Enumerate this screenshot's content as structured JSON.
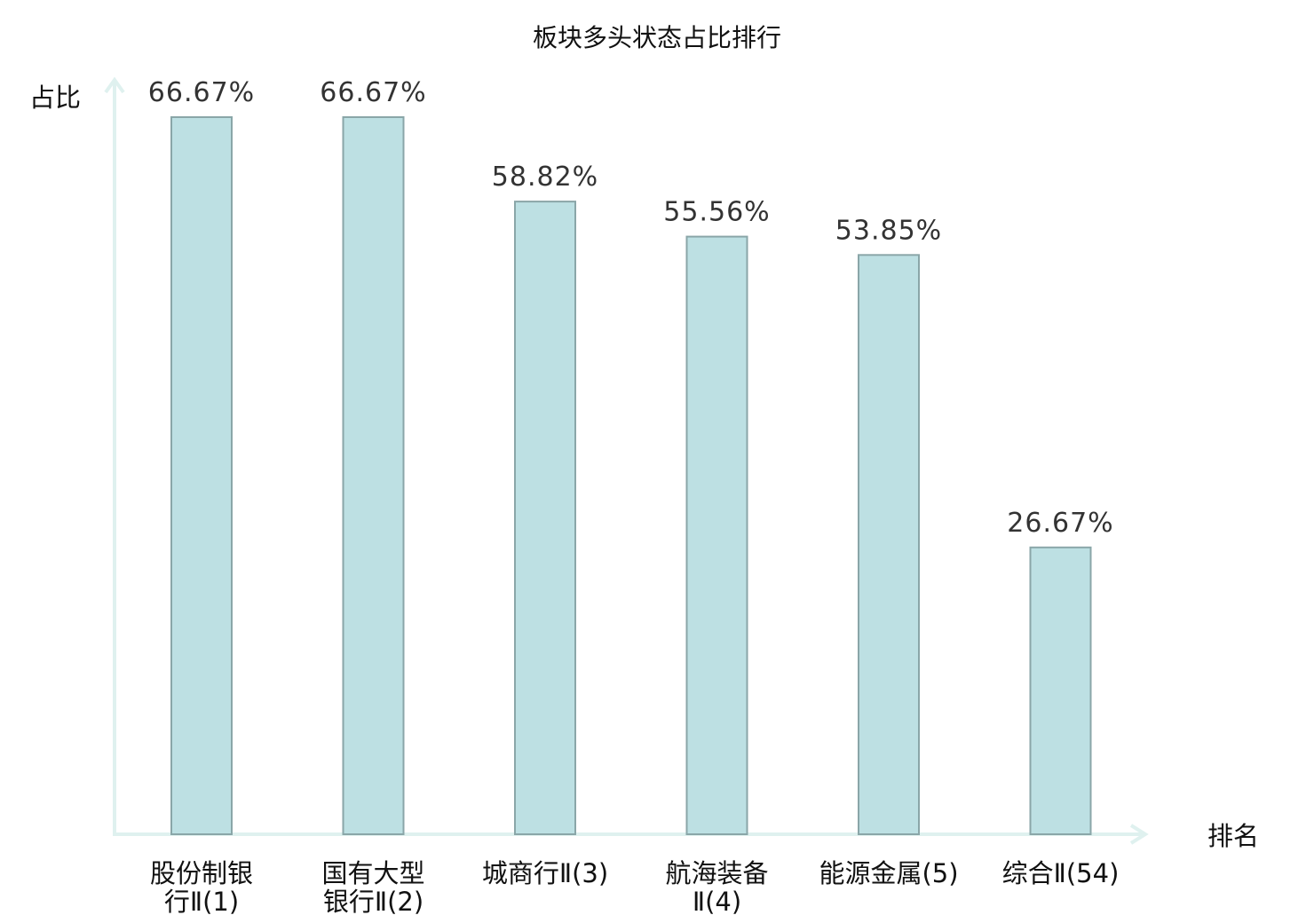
{
  "chart_data": {
    "type": "bar",
    "title": "板块多头状态占比排行",
    "ylabel": "占比",
    "xlabel": "排名",
    "ylim": [
      0,
      70
    ],
    "grid": false,
    "legend": "none",
    "categories": [
      [
        "股份制银",
        "行Ⅱ(1)"
      ],
      [
        "国有大型",
        "银行Ⅱ(2)"
      ],
      [
        "城商行Ⅱ(3)"
      ],
      [
        "航海装备",
        "Ⅱ(4)"
      ],
      [
        "能源金属(5)"
      ],
      [
        "综合Ⅱ(54)"
      ]
    ],
    "values": [
      66.67,
      66.67,
      58.82,
      55.56,
      53.85,
      26.67
    ],
    "value_labels": [
      "66.67%",
      "66.67%",
      "58.82%",
      "55.56%",
      "53.85%",
      "26.67%"
    ],
    "highlight_index": 5,
    "colors": {
      "bar_fill": "#bde0e3",
      "bar_stroke": "#8aa6a8",
      "axis": "#dff1ef",
      "highlight_text": "#e02020",
      "text": "#111111",
      "value_text": "#333333"
    }
  }
}
